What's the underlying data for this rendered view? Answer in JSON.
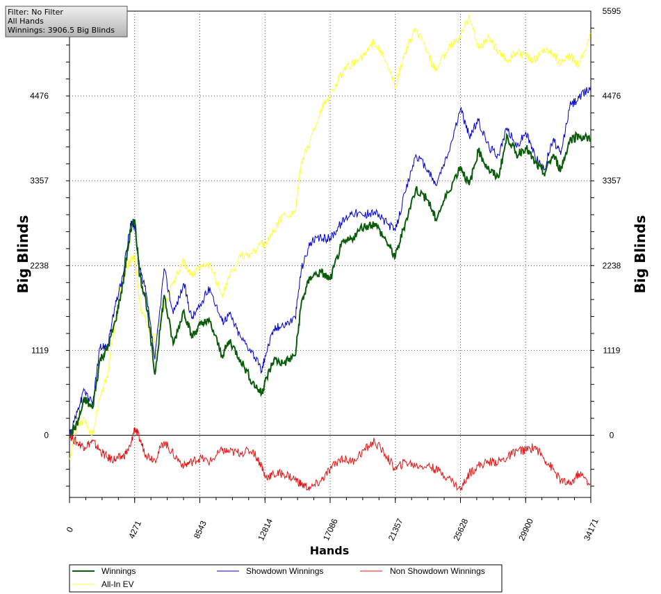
{
  "info_box": {
    "line1": "Filter: No Filter",
    "line2": "All Hands",
    "line3": "Winnings: 3906.5 Big Blinds"
  },
  "chart_data": {
    "type": "line",
    "xlabel": "Hands",
    "ylabel_left": "Big Blinds",
    "ylabel_right": "Big Blinds",
    "xlim": [
      0,
      34171
    ],
    "ylim": [
      -820,
      5595
    ],
    "x_ticks": [
      0,
      4271,
      8543,
      12814,
      17086,
      21357,
      25628,
      29900,
      34171
    ],
    "y_ticks": [
      0,
      1119,
      2238,
      3357,
      4476,
      5595
    ],
    "grid": true,
    "legend_position": "bottom",
    "series": [
      {
        "name": "Winnings",
        "color": "#0a5c0a",
        "x": [
          0,
          500,
          1000,
          1500,
          2000,
          2500,
          3000,
          3500,
          4000,
          4271,
          4600,
          5000,
          5600,
          6200,
          6800,
          7500,
          8000,
          8543,
          9200,
          10000,
          10500,
          11200,
          12000,
          12600,
          12814,
          13400,
          14000,
          14800,
          15200,
          15800,
          16500,
          17086,
          17800,
          18500,
          19300,
          20000,
          20800,
          21357,
          22000,
          22700,
          23500,
          24000,
          24800,
          25628,
          26200,
          26800,
          27500,
          28100,
          28700,
          29300,
          29900,
          30500,
          31100,
          31700,
          32200,
          32800,
          33400,
          34171
        ],
        "values": [
          0,
          150,
          480,
          350,
          1000,
          1150,
          1500,
          2000,
          2700,
          2850,
          2100,
          1800,
          800,
          1850,
          1200,
          1650,
          1300,
          1450,
          1500,
          1050,
          1250,
          1000,
          700,
          550,
          700,
          1000,
          950,
          1050,
          1750,
          2100,
          2150,
          2050,
          2500,
          2600,
          2750,
          2800,
          2550,
          2350,
          2800,
          3250,
          3100,
          2850,
          3200,
          3550,
          3300,
          3750,
          3500,
          3400,
          3950,
          3700,
          3800,
          3600,
          3450,
          3700,
          3500,
          3900,
          3950,
          3906.5
        ]
      },
      {
        "name": "Showdown Winnings",
        "color": "#0000cc",
        "x": [
          0,
          500,
          1000,
          1500,
          2000,
          2500,
          3000,
          3500,
          4000,
          4271,
          4600,
          5000,
          5600,
          6200,
          6800,
          7500,
          8000,
          8543,
          9200,
          10000,
          10500,
          11200,
          12000,
          12600,
          12814,
          13400,
          14000,
          14800,
          15200,
          15800,
          16500,
          17086,
          17800,
          18500,
          19300,
          20000,
          20800,
          21357,
          22000,
          22700,
          23500,
          24000,
          24800,
          25628,
          26200,
          26800,
          27500,
          28100,
          28700,
          29300,
          29900,
          30500,
          31100,
          31700,
          32200,
          32800,
          33400,
          34171
        ],
        "values": [
          0,
          300,
          600,
          400,
          1150,
          1200,
          1700,
          2100,
          2800,
          2750,
          2200,
          1900,
          1000,
          2200,
          1600,
          2000,
          1550,
          1700,
          1950,
          1500,
          1600,
          1300,
          1100,
          850,
          1050,
          1400,
          1450,
          1550,
          2200,
          2550,
          2600,
          2600,
          2800,
          2950,
          2900,
          2950,
          2800,
          2700,
          3200,
          3700,
          3500,
          3300,
          3700,
          4300,
          3950,
          4150,
          3800,
          3700,
          4050,
          3800,
          4000,
          3700,
          3500,
          3900,
          3700,
          4350,
          4450,
          4600
        ]
      },
      {
        "name": "Non Showdown Winnings",
        "color": "#e31414",
        "x": [
          0,
          500,
          1000,
          1500,
          2000,
          2500,
          3000,
          3500,
          4000,
          4271,
          4600,
          5000,
          5600,
          6200,
          6800,
          7500,
          8000,
          8543,
          9200,
          10000,
          10500,
          11200,
          12000,
          12600,
          12814,
          13400,
          14000,
          14800,
          15200,
          15800,
          16500,
          17086,
          17800,
          18500,
          19300,
          20000,
          20800,
          21357,
          22000,
          22700,
          23500,
          24000,
          24800,
          25628,
          26200,
          26800,
          27500,
          28100,
          28700,
          29300,
          29900,
          30500,
          31100,
          31700,
          32200,
          32800,
          33400,
          34171
        ],
        "values": [
          0,
          -100,
          -150,
          -80,
          -200,
          -300,
          -320,
          -280,
          -150,
          100,
          -50,
          -250,
          -320,
          -80,
          -250,
          -400,
          -350,
          -300,
          -350,
          -200,
          -220,
          -230,
          -200,
          -400,
          -550,
          -520,
          -500,
          -580,
          -650,
          -700,
          -600,
          -450,
          -300,
          -350,
          -200,
          -80,
          -280,
          -450,
          -350,
          -400,
          -400,
          -450,
          -550,
          -720,
          -500,
          -400,
          -350,
          -350,
          -300,
          -200,
          -200,
          -150,
          -300,
          -450,
          -600,
          -650,
          -500,
          -650
        ]
      },
      {
        "name": "All-In EV",
        "color": "#ffff33",
        "x": [
          0,
          500,
          1000,
          1500,
          2000,
          2500,
          3000,
          3500,
          4000,
          4271,
          4600,
          5000,
          5600,
          6200,
          6800,
          7500,
          8000,
          8543,
          9200,
          10000,
          10500,
          11200,
          12000,
          12600,
          12814,
          13400,
          14000,
          14800,
          15200,
          15800,
          16500,
          17086,
          17800,
          18500,
          19300,
          20000,
          20800,
          21357,
          22000,
          22700,
          23500,
          24000,
          24800,
          25628,
          26200,
          26800,
          27500,
          28100,
          28700,
          29300,
          29900,
          30500,
          31100,
          31700,
          32200,
          32800,
          33400,
          34171
        ],
        "values": [
          -300,
          100,
          200,
          0,
          500,
          800,
          1500,
          2100,
          2300,
          2350,
          1750,
          1500,
          1250,
          1700,
          2000,
          2300,
          2100,
          2200,
          2250,
          1850,
          2100,
          2350,
          2400,
          2550,
          2500,
          2700,
          2900,
          2950,
          3600,
          3900,
          4300,
          4500,
          4750,
          4900,
          5000,
          5200,
          4900,
          4600,
          5050,
          5350,
          5050,
          4800,
          5100,
          5250,
          5550,
          5100,
          5250,
          5050,
          4950,
          5050,
          5000,
          4950,
          5100,
          5050,
          4900,
          5000,
          4900,
          5300
        ]
      }
    ]
  },
  "legend": {
    "item1": "Winnings",
    "item2": "Showdown Winnings",
    "item3": "Non Showdown Winnings",
    "item4": "All-In EV"
  }
}
